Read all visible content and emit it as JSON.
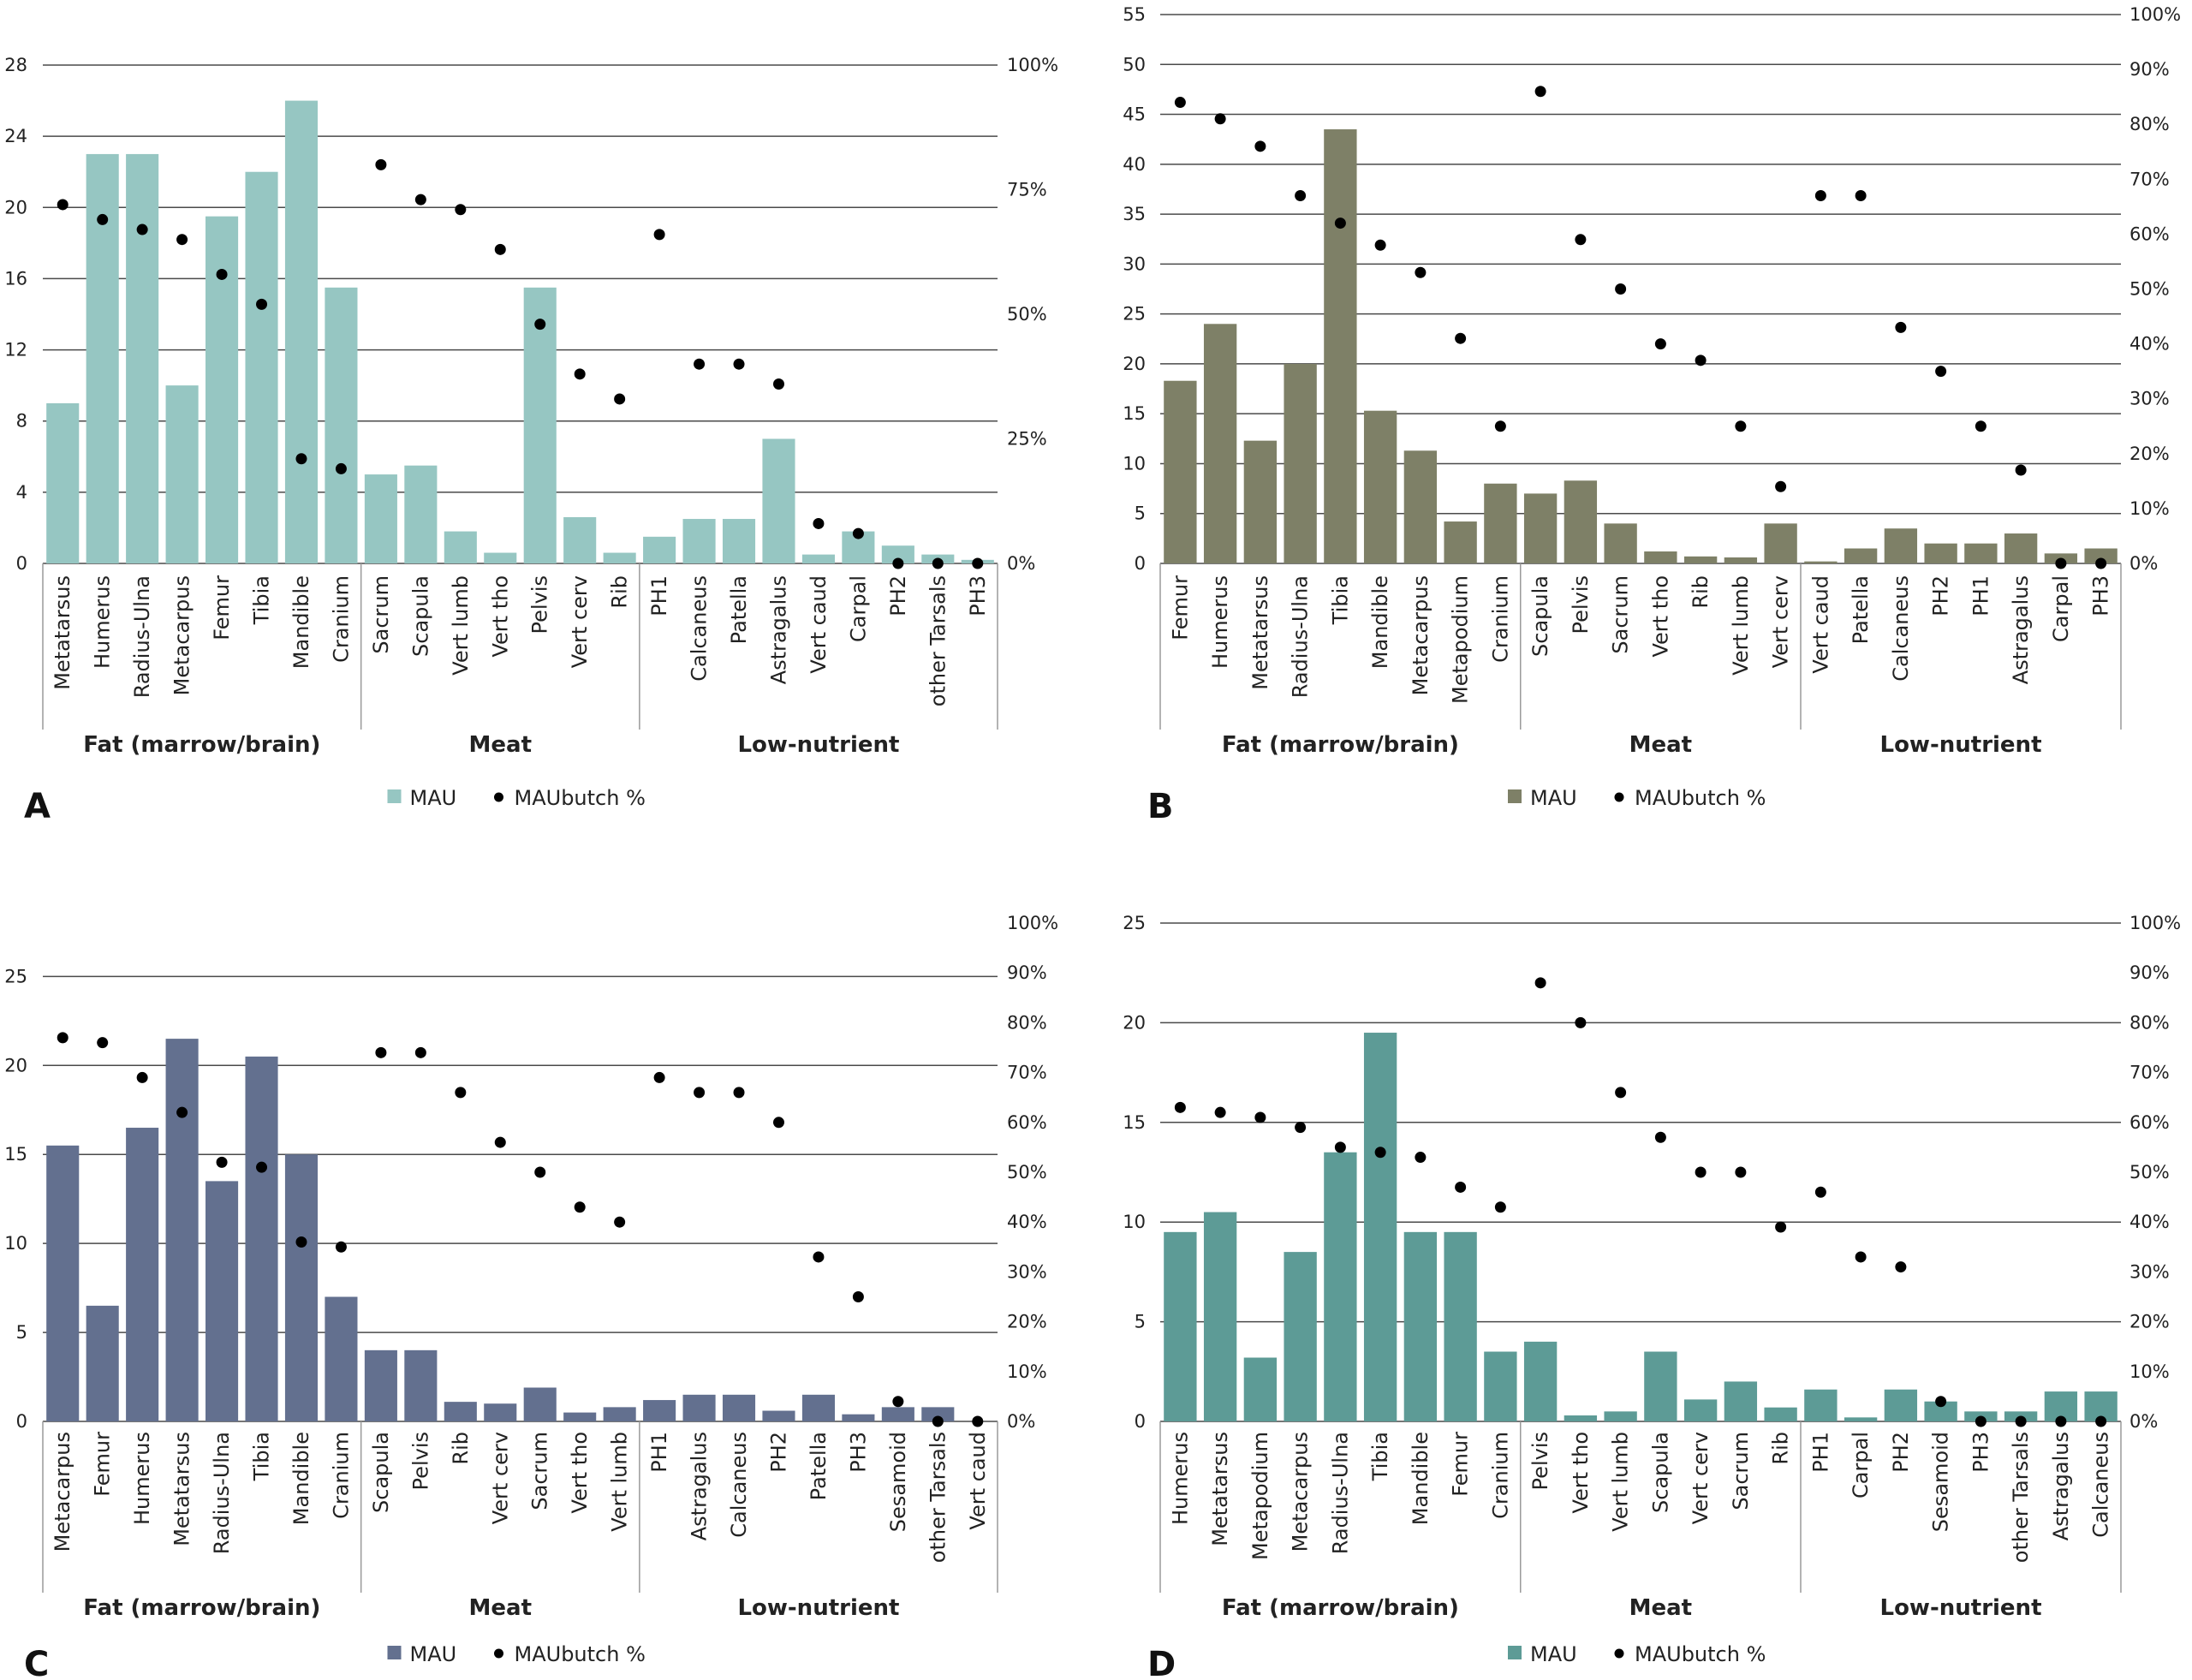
{
  "legend_mau": "MAU",
  "legend_pct": "MAUbutch %",
  "group_labels": [
    "Fat (marrow/brain)",
    "Meat",
    "Low-nutrient"
  ],
  "colors": {
    "A": "#96c6c2",
    "B": "#7e8067",
    "C": "#63708f",
    "D": "#5d9b96",
    "dot": "#000000",
    "gridline": "#4a4a4a",
    "text": "#222222"
  },
  "chart_data": [
    {
      "panel": "A",
      "type": "bar",
      "left_ticks": [
        "0",
        "4",
        "8",
        "12",
        "16",
        "20",
        "24",
        "28"
      ],
      "right_ticks": [
        "0%",
        "25%",
        "50%",
        "75%",
        "100%"
      ],
      "ylim_left": [
        0,
        28
      ],
      "ylim_right": [
        0,
        100
      ],
      "categories": [
        "Metatarsus",
        "Humerus",
        "Radius-Ulna",
        "Metacarpus",
        "Femur",
        "Tibia",
        "Mandible",
        "Cranium",
        "Sacrum",
        "Scapula",
        "Vert lumb",
        "Vert tho",
        "Pelvis",
        "Vert cerv",
        "Rib",
        "PH1",
        "Calcaneus",
        "Patella",
        "Astragalus",
        "Vert caud",
        "Carpal",
        "PH2",
        "other Tarsals",
        "PH3"
      ],
      "groups": [
        8,
        7,
        9
      ],
      "series": [
        {
          "name": "MAU",
          "values": [
            9,
            23,
            23,
            10,
            19.5,
            22,
            26,
            15.5,
            5,
            5.5,
            1.8,
            0.6,
            15.5,
            2.6,
            0.6,
            1.5,
            2.5,
            2.5,
            7,
            0.5,
            1.8,
            1,
            0.5,
            0.2
          ]
        },
        {
          "name": "MAUbutch %",
          "values": [
            72,
            69,
            67,
            65,
            58,
            52,
            21,
            19,
            80,
            73,
            71,
            63,
            48,
            38,
            33,
            66,
            40,
            40,
            36,
            8,
            6,
            0,
            0,
            0
          ]
        }
      ]
    },
    {
      "panel": "B",
      "type": "bar",
      "left_ticks": [
        "0",
        "5",
        "10",
        "15",
        "20",
        "25",
        "30",
        "35",
        "40",
        "45",
        "50",
        "55"
      ],
      "right_ticks": [
        "0%",
        "10%",
        "20%",
        "30%",
        "40%",
        "50%",
        "60%",
        "70%",
        "80%",
        "90%",
        "100%"
      ],
      "ylim_left": [
        0,
        55
      ],
      "ylim_right": [
        0,
        100
      ],
      "categories": [
        "Femur",
        "Humerus",
        "Metatarsus",
        "Radius-Ulna",
        "Tibia",
        "Mandible",
        "Metacarpus",
        "Metapodium",
        "Cranium",
        "Scapula",
        "Pelvis",
        "Sacrum",
        "Vert tho",
        "Rib",
        "Vert lumb",
        "Vert cerv",
        "Vert caud",
        "Patella",
        "Calcaneus",
        "PH2",
        "PH1",
        "Astragalus",
        "Carpal",
        "PH3"
      ],
      "groups": [
        9,
        7,
        8
      ],
      "series": [
        {
          "name": "MAU",
          "values": [
            18.3,
            24,
            12.3,
            20,
            43.5,
            15.3,
            11.3,
            4.2,
            8,
            7,
            8.3,
            4,
            1.2,
            0.7,
            0.6,
            4,
            0.2,
            1.5,
            3.5,
            2,
            2,
            3,
            1,
            1.5
          ]
        },
        {
          "name": "MAUbutch %",
          "values": [
            84,
            81,
            76,
            67,
            62,
            58,
            53,
            41,
            25,
            86,
            59,
            50,
            40,
            37,
            25,
            14,
            67,
            67,
            43,
            35,
            25,
            17,
            0,
            0
          ]
        }
      ]
    },
    {
      "panel": "C",
      "type": "bar",
      "left_ticks": [
        "0",
        "5",
        "10",
        "15",
        "20",
        "25"
      ],
      "right_ticks": [
        "0%",
        "10%",
        "20%",
        "30%",
        "40%",
        "50%",
        "60%",
        "70%",
        "80%",
        "90%",
        "100%"
      ],
      "ylim_left": [
        0,
        28
      ],
      "ylim_right": [
        0,
        100
      ],
      "categories": [
        "Metacarpus",
        "Femur",
        "Humerus",
        "Metatarsus",
        "Radius-Ulna",
        "Tibia",
        "Mandible",
        "Cranium",
        "Scapula",
        "Pelvis",
        "Rib",
        "Vert cerv",
        "Sacrum",
        "Vert tho",
        "Vert lumb",
        "PH1",
        "Astragalus",
        "Calcaneus",
        "PH2",
        "Patella",
        "PH3",
        "Sesamoid",
        "other Tarsals",
        "Vert caud"
      ],
      "groups": [
        8,
        7,
        9
      ],
      "series": [
        {
          "name": "MAU",
          "values": [
            15.5,
            6.5,
            16.5,
            21.5,
            13.5,
            20.5,
            15,
            7,
            4,
            4,
            1.1,
            1,
            1.9,
            0.5,
            0.8,
            1.2,
            1.5,
            1.5,
            0.6,
            1.5,
            0.4,
            0.8,
            0.8,
            0
          ]
        },
        {
          "name": "MAUbutch %",
          "values": [
            77,
            76,
            69,
            62,
            52,
            51,
            36,
            35,
            74,
            74,
            66,
            56,
            50,
            43,
            40,
            69,
            66,
            66,
            60,
            33,
            25,
            4,
            0,
            0
          ]
        }
      ]
    },
    {
      "panel": "D",
      "type": "bar",
      "left_ticks": [
        "0",
        "5",
        "10",
        "15",
        "20",
        "25"
      ],
      "right_ticks": [
        "0%",
        "10%",
        "20%",
        "30%",
        "40%",
        "50%",
        "60%",
        "70%",
        "80%",
        "90%",
        "100%"
      ],
      "ylim_left": [
        0,
        25
      ],
      "ylim_right": [
        0,
        100
      ],
      "categories": [
        "Humerus",
        "Metatarsus",
        "Metapodium",
        "Metacarpus",
        "Radius-Ulna",
        "Tibia",
        "Mandible",
        "Femur",
        "Cranium",
        "Pelvis",
        "Vert tho",
        "Vert lumb",
        "Scapula",
        "Vert cerv",
        "Sacrum",
        "Rib",
        "PH1",
        "Carpal",
        "PH2",
        "Sesamoid",
        "PH3",
        "other Tarsals",
        "Astragalus",
        "Calcaneus"
      ],
      "groups": [
        9,
        7,
        8
      ],
      "series": [
        {
          "name": "MAU",
          "values": [
            9.5,
            10.5,
            3.2,
            8.5,
            13.5,
            19.5,
            9.5,
            9.5,
            3.5,
            4,
            0.3,
            0.5,
            3.5,
            1.1,
            2,
            0.7,
            1.6,
            0.2,
            1.6,
            1,
            0.5,
            0.5,
            1.5,
            1.5
          ]
        },
        {
          "name": "MAUbutch %",
          "values": [
            63,
            62,
            61,
            59,
            55,
            54,
            53,
            47,
            43,
            88,
            80,
            66,
            57,
            50,
            50,
            39,
            46,
            33,
            31,
            4,
            0,
            0,
            0,
            0
          ]
        }
      ]
    }
  ]
}
